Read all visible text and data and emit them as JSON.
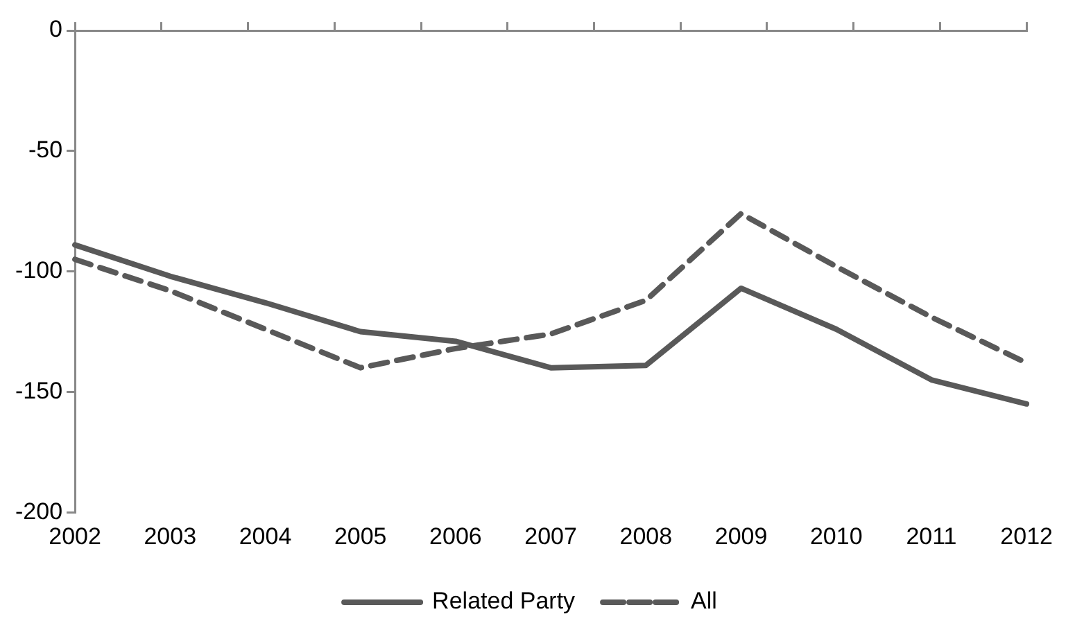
{
  "chart_data": {
    "type": "line",
    "categories": [
      "2002",
      "2003",
      "2004",
      "2005",
      "2006",
      "2007",
      "2008",
      "2009",
      "2010",
      "2011",
      "2012"
    ],
    "series": [
      {
        "name": "Related Party",
        "color": "#595959",
        "line_style": "solid",
        "values": [
          -89,
          -102,
          -113,
          -125,
          -129,
          -140,
          -139,
          -107,
          -124,
          -145,
          -155
        ]
      },
      {
        "name": "All",
        "color": "#595959",
        "line_style": "dashed",
        "values": [
          -95,
          -108,
          -124,
          -140,
          -132,
          -126,
          -112,
          -76,
          -98,
          -119,
          -138
        ]
      }
    ],
    "ylim": [
      -200,
      0
    ],
    "yticks": [
      -200,
      -150,
      -100,
      -50,
      0
    ],
    "grid": false,
    "legend": "bottom",
    "marker": "none"
  }
}
